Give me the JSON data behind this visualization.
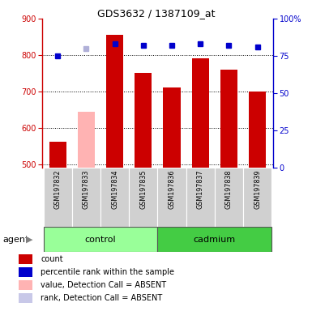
{
  "title": "GDS3632 / 1387109_at",
  "samples": [
    "GSM197832",
    "GSM197833",
    "GSM197834",
    "GSM197835",
    "GSM197836",
    "GSM197837",
    "GSM197838",
    "GSM197839"
  ],
  "bar_values": [
    563,
    645,
    855,
    750,
    710,
    792,
    760,
    700
  ],
  "bar_colors": [
    "#cc0000",
    "#ffb3b3",
    "#cc0000",
    "#cc0000",
    "#cc0000",
    "#cc0000",
    "#cc0000",
    "#cc0000"
  ],
  "rank_values": [
    75,
    80,
    83,
    82,
    82,
    83,
    82,
    81
  ],
  "rank_colors": [
    "#0000cc",
    "#b0b0d8",
    "#0000cc",
    "#0000cc",
    "#0000cc",
    "#0000cc",
    "#0000cc",
    "#0000cc"
  ],
  "ylim_left": [
    490,
    900
  ],
  "ylim_right": [
    0,
    100
  ],
  "yticks_left": [
    500,
    600,
    700,
    800,
    900
  ],
  "yticks_right": [
    0,
    25,
    50,
    75,
    100
  ],
  "ylabel_left_color": "#cc0000",
  "ylabel_right_color": "#0000cc",
  "legend_items": [
    {
      "color": "#cc0000",
      "label": "count"
    },
    {
      "color": "#0000cc",
      "label": "percentile rank within the sample"
    },
    {
      "color": "#ffb3b3",
      "label": "value, Detection Call = ABSENT"
    },
    {
      "color": "#c8c8e8",
      "label": "rank, Detection Call = ABSENT"
    }
  ]
}
